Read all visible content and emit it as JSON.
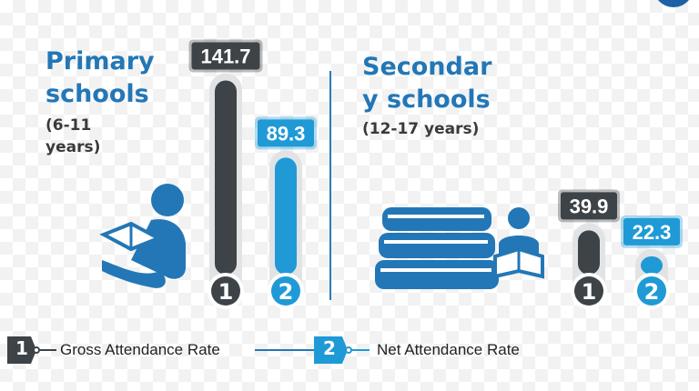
{
  "primary": {
    "title_line1": "Primary",
    "title_line2": "schools",
    "age_line1": "(6-11",
    "age_line2": "years)"
  },
  "secondary": {
    "title_line1": "Secondar",
    "title_line2": "y  schools",
    "age": "(12-17 years)"
  },
  "legend": {
    "gross_marker": "1",
    "gross_label": "Gross Attendance Rate",
    "net_marker": "2",
    "net_label": "Net Attendance Rate"
  },
  "colors": {
    "gross": "#3d4347",
    "net": "#1f9ad6",
    "heading": "#2377b6"
  },
  "chart_data": [
    {
      "type": "bar",
      "categories": [
        "1",
        "2"
      ],
      "values": [
        141.7,
        89.3
      ],
      "value_labels": [
        "141.7",
        "89.3"
      ],
      "ylim": [
        0,
        150
      ]
    },
    {
      "type": "bar",
      "categories": [
        "1",
        "2"
      ],
      "values": [
        39.9,
        22.3
      ],
      "value_labels": [
        "39.9",
        "22.3"
      ],
      "ylim": [
        0,
        150
      ]
    }
  ]
}
